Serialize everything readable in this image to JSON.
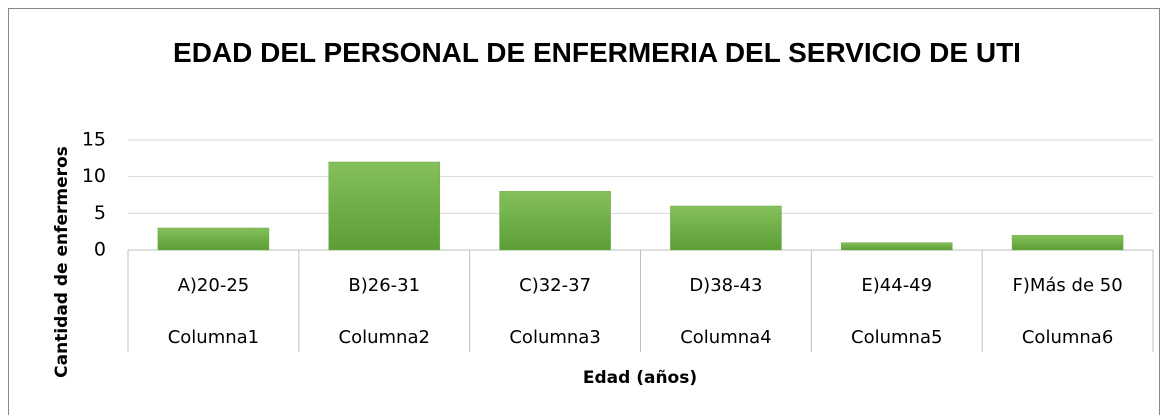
{
  "chart_data": {
    "type": "bar",
    "title": "EDAD DEL PERSONAL DE ENFERMERIA DEL SERVICIO DE UTI",
    "x_label": "Edad (años)",
    "y_label": "Cantidad de enfermeros",
    "categories": [
      "A)20-25",
      "B)26-31",
      "C)32-37",
      "D)38-43",
      "E)44-49",
      "F)Más de 50"
    ],
    "subcategories": [
      "Columna1",
      "Columna2",
      "Columna3",
      "Columna4",
      "Columna5",
      "Columna6"
    ],
    "values": [
      3,
      12,
      8,
      6,
      1,
      2
    ],
    "color": "#70ad47",
    "ylim": [
      0,
      15
    ],
    "yticks": [
      0,
      5,
      10,
      15
    ],
    "grid": true
  }
}
